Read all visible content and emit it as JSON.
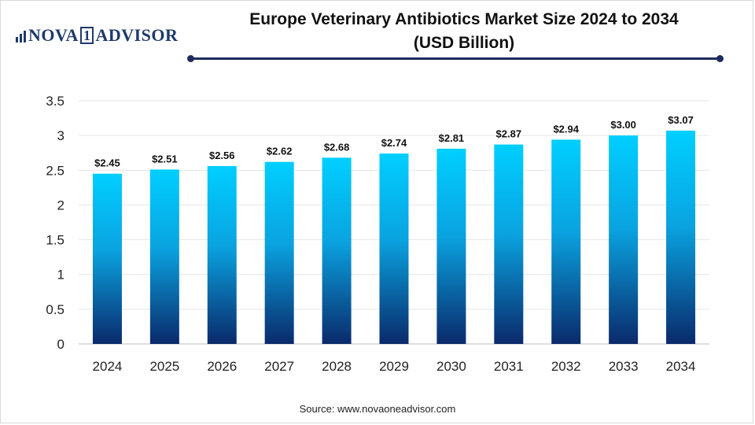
{
  "brand": {
    "name_left": "NOVA",
    "name_box": "1",
    "name_right": "ADVISOR",
    "logo_icon": "bar-chart-icon"
  },
  "header": {
    "title_line1": "Europe Veterinary Antibiotics Market Size 2024 to 2034",
    "title_line2": "(USD Billion)"
  },
  "footer": {
    "source": "Source: www.novaoneadvisor.com"
  },
  "colors": {
    "bar_top": "#00cfff",
    "bar_bottom": "#0a2a6b",
    "accent_rule": "#1e2b5e",
    "grid": "#e6e6e6",
    "axis": "#bfbfbf"
  },
  "chart_data": {
    "type": "bar",
    "title": "Europe Veterinary Antibiotics Market Size 2024 to 2034 (USD Billion)",
    "categories": [
      "2024",
      "2025",
      "2026",
      "2027",
      "2028",
      "2029",
      "2030",
      "2031",
      "2032",
      "2033",
      "2034"
    ],
    "values": [
      2.45,
      2.51,
      2.56,
      2.62,
      2.68,
      2.74,
      2.81,
      2.87,
      2.94,
      3.0,
      3.07
    ],
    "data_labels": [
      "$2.45",
      "$2.51",
      "$2.56",
      "$2.62",
      "$2.68",
      "$2.74",
      "$2.81",
      "$2.87",
      "$2.94",
      "$3.00",
      "$3.07"
    ],
    "y_ticks": [
      "0",
      "0.5",
      "1",
      "1.5",
      "2",
      "2.5",
      "3",
      "3.5"
    ],
    "ylim": [
      0,
      3.5
    ],
    "xlabel": "",
    "ylabel": "",
    "grid": true,
    "legend": "none"
  }
}
